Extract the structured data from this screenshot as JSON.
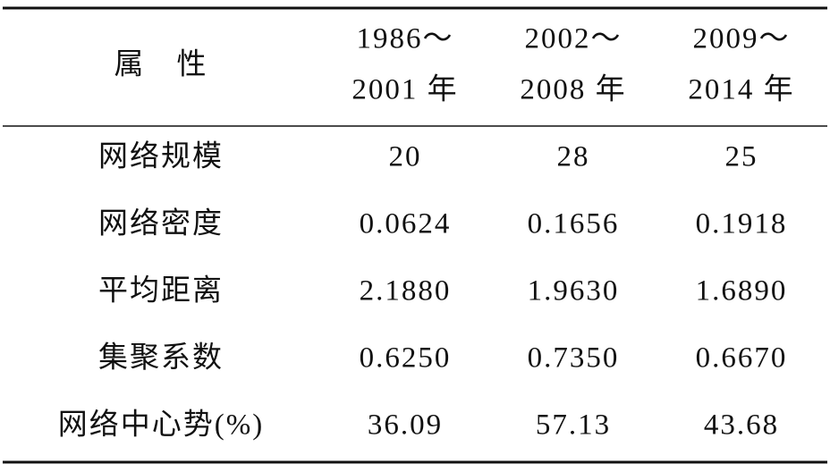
{
  "table": {
    "header": [
      [
        "属　性"
      ],
      [
        "1986～",
        "2001 年"
      ],
      [
        "2002～",
        "2008 年"
      ],
      [
        "2009～",
        "2014 年"
      ]
    ],
    "rows": [
      [
        "网络规模",
        "20",
        "28",
        "25"
      ],
      [
        "网络密度",
        "0.0624",
        "0.1656",
        "0.1918"
      ],
      [
        "平均距离",
        "2.1880",
        "1.9630",
        "1.6890"
      ],
      [
        "集聚系数",
        "0.6250",
        "0.7350",
        "0.6670"
      ],
      [
        "网络中心势(%)",
        "36.09",
        "57.13",
        "43.68"
      ]
    ]
  }
}
